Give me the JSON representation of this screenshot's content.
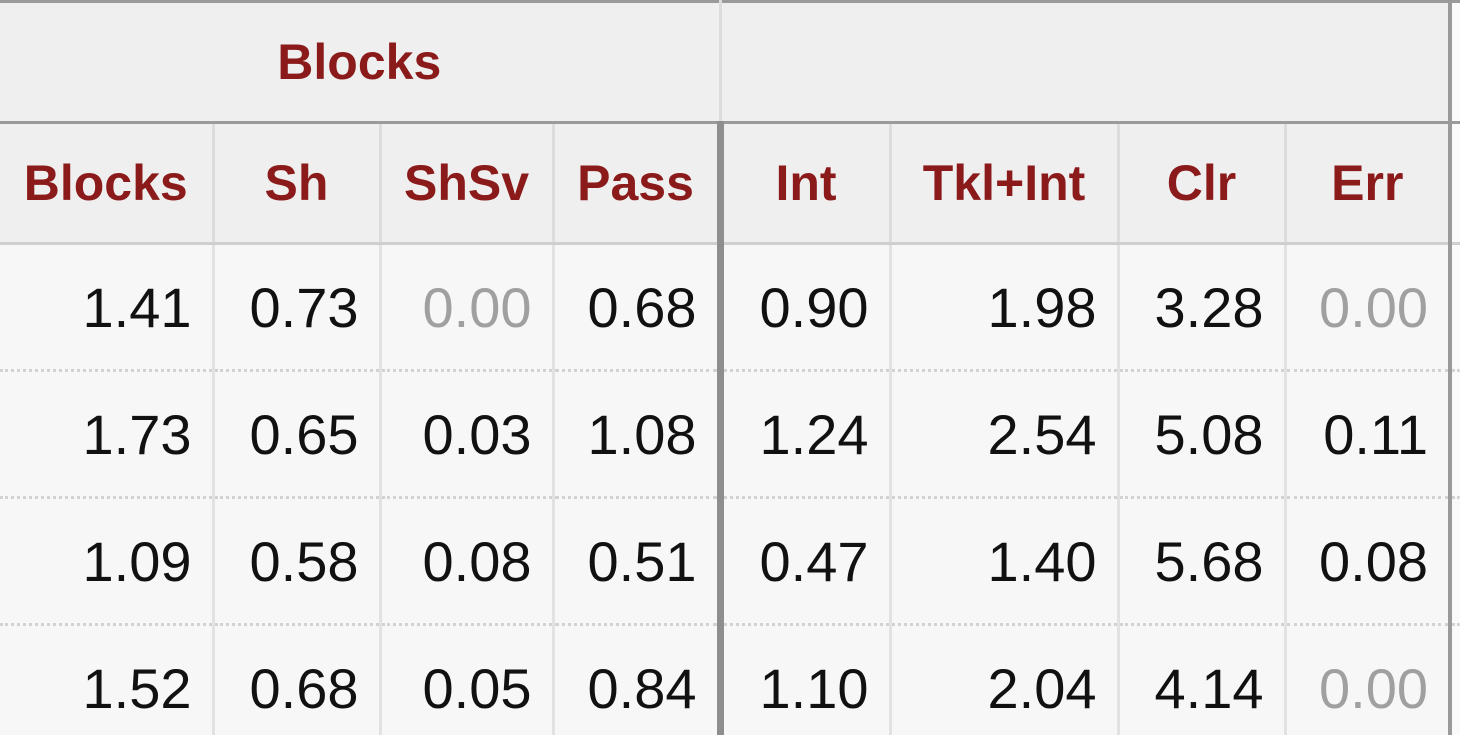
{
  "table": {
    "group_header": "Blocks",
    "columns": [
      "Blocks",
      "Sh",
      "ShSv",
      "Pass",
      "Int",
      "Tkl+Int",
      "Clr",
      "Err"
    ],
    "rows": [
      [
        "1.41",
        "0.73",
        "0.00",
        "0.68",
        "0.90",
        "1.98",
        "3.28",
        "0.00"
      ],
      [
        "1.73",
        "0.65",
        "0.03",
        "1.08",
        "1.24",
        "2.54",
        "5.08",
        "0.11"
      ],
      [
        "1.09",
        "0.58",
        "0.08",
        "0.51",
        "0.47",
        "1.40",
        "5.68",
        "0.08"
      ],
      [
        "1.52",
        "0.68",
        "0.05",
        "0.84",
        "1.10",
        "2.04",
        "4.14",
        "0.00"
      ]
    ]
  }
}
